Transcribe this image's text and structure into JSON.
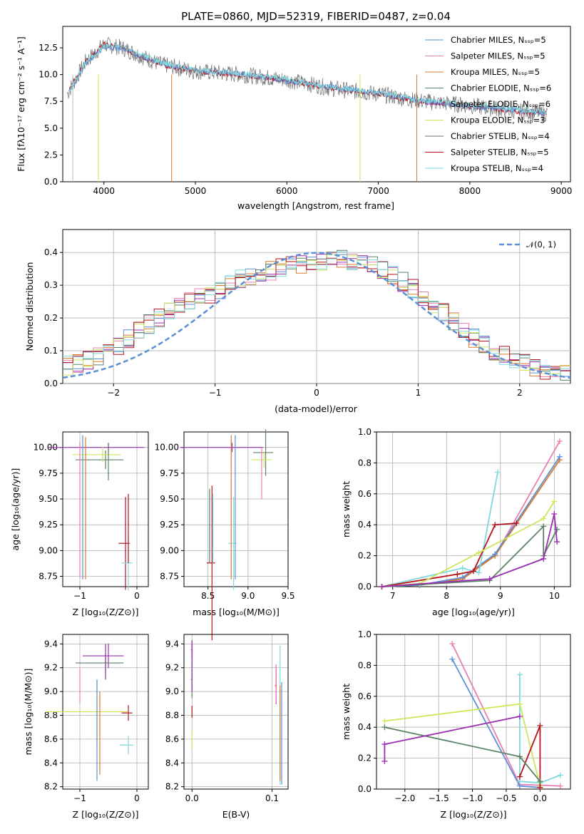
{
  "colors": [
    "#5b8fd6",
    "#e77fb4",
    "#dd7a2a",
    "#5b8265",
    "#9a2fb0",
    "#cde65c",
    "#707070",
    "#b5121b",
    "#7fd9dc"
  ],
  "chart_data": [
    {
      "type": "line",
      "title": "PLATE=0860, MJD=52319, FIBERID=0487, z=0.04",
      "xlabel": "wavelength [Angstrom, rest frame]",
      "ylabel": "Flux [fλ10⁻¹⁷ erg cm⁻² s⁻¹ A⁻¹]",
      "xlim": [
        3550,
        9100
      ],
      "ylim": [
        0,
        14.5
      ],
      "xticks": [
        "4000",
        "5000",
        "6000",
        "7000",
        "8000",
        "9000"
      ],
      "yticks": [
        "0.0",
        "2.5",
        "5.0",
        "7.5",
        "10.0",
        "12.5"
      ],
      "legend": [
        "Chabrier MILES, Nₛₛₚ=5",
        "Salpeter MILES, Nₛₛₚ=5",
        "Kroupa MILES, Nₛₛₚ=5",
        "Chabrier ELODIE, Nₛₛₚ=6",
        "Salpeter ELODIE, Nₛₛₚ=6",
        "Kroupa ELODIE, Nₛₛₚ=3",
        "Chabrier STELIB, Nₛₛₚ=4",
        "Salpeter STELIB, Nₛₛₚ=5",
        "Kroupa STELIB, Nₛₛₚ=4"
      ],
      "series": [
        {
          "name": "Chabrier MILES, Nₛₛₚ=5",
          "x": [
            3600,
            3800,
            4000,
            4200,
            4600,
            5000,
            5500,
            6000,
            6500,
            7000,
            7400,
            8000,
            8500,
            8800
          ],
          "y": [
            8.2,
            11.2,
            12.8,
            12.5,
            11.0,
            10.3,
            10.0,
            9.5,
            8.7,
            8.2,
            7.6,
            7.1,
            6.6,
            6.4
          ]
        },
        {
          "name": "Kroupa STELIB, Nₛₛₚ=4",
          "x": [
            3600,
            3800,
            4000,
            4200,
            4600,
            5000,
            5500,
            6000,
            6500,
            7000,
            7400,
            8000,
            8500,
            8800
          ],
          "y": [
            8.0,
            11.0,
            12.6,
            12.4,
            11.1,
            10.4,
            10.1,
            9.4,
            8.8,
            8.3,
            7.6,
            7.0,
            6.7,
            6.4
          ]
        },
        {
          "name": "Salpeter STELIB, Nₛₛₚ=5",
          "x": [
            3600,
            3800,
            4000,
            4200,
            4600,
            5000,
            5500,
            6000,
            6500,
            7000,
            7400,
            8000,
            8500,
            8800
          ],
          "y": [
            8.1,
            11.1,
            12.7,
            12.6,
            11.2,
            10.4,
            10.1,
            9.6,
            8.8,
            8.3,
            7.7,
            7.2,
            6.8,
            6.5
          ]
        }
      ]
    },
    {
      "type": "line",
      "xlabel": "(data-model)/error",
      "ylabel": "Normed distribution",
      "xlim": [
        -2.5,
        2.5
      ],
      "ylim": [
        0,
        0.47
      ],
      "xticks": [
        "−2",
        "−1",
        "0",
        "1",
        "2"
      ],
      "yticks": [
        "0.0",
        "0.1",
        "0.2",
        "0.3",
        "0.4"
      ],
      "legend": [
        "𝒩(0, 1)"
      ],
      "series": [
        {
          "name": "histogram",
          "x": [
            -2.5,
            -2.25,
            -2,
            -1.75,
            -1.5,
            -1.25,
            -1,
            -0.75,
            -0.5,
            -0.25,
            0,
            0.25,
            0.5,
            0.75,
            1,
            1.25,
            1.5,
            1.75,
            2,
            2.25,
            2.5
          ],
          "y": [
            0.05,
            0.07,
            0.1,
            0.16,
            0.21,
            0.25,
            0.28,
            0.32,
            0.34,
            0.36,
            0.37,
            0.38,
            0.37,
            0.33,
            0.28,
            0.22,
            0.15,
            0.1,
            0.07,
            0.04,
            0.03
          ]
        }
      ]
    },
    {
      "type": "scatter",
      "xlabel": "Z [log₁₀(Z/Z⊙)]",
      "ylabel": "age  [log₁₀(age/yr)]",
      "xlim": [
        -1.3,
        0.2
      ],
      "ylim": [
        8.65,
        10.15
      ],
      "xticks": [
        "−1",
        "0"
      ],
      "yticks": [
        "8.75",
        "9.00",
        "9.25",
        "9.50",
        "9.75",
        "10.00"
      ],
      "points": [
        {
          "x": -0.5,
          "y": 10.0
        },
        {
          "x": -0.55,
          "y": 9.88
        },
        {
          "x": -0.2,
          "y": 9.07
        },
        {
          "x": -0.15,
          "y": 8.88
        },
        {
          "x": -0.6,
          "y": 9.93
        }
      ]
    },
    {
      "type": "scatter",
      "xlabel": "mass [log₁₀(M/M⊙)]",
      "xlim": [
        8.2,
        9.5
      ],
      "ylim": [
        8.65,
        10.15
      ],
      "xticks": [
        "8.5",
        "9.0",
        "9.5"
      ],
      "yticks": [
        "8.75",
        "9.00",
        "9.25",
        "9.50",
        "9.75",
        "10.00"
      ],
      "points": [
        {
          "x": 8.8,
          "y": 10.0
        },
        {
          "x": 9.22,
          "y": 9.95
        },
        {
          "x": 8.55,
          "y": 8.88
        },
        {
          "x": 8.82,
          "y": 9.07
        },
        {
          "x": 9.2,
          "y": 9.88
        }
      ]
    },
    {
      "type": "line",
      "xlabel": "age  [log₁₀(age/yr)]",
      "ylabel": "mass weight",
      "xlim": [
        6.7,
        10.3
      ],
      "ylim": [
        0,
        1.0
      ],
      "xticks": [
        "7",
        "8",
        "9",
        "10"
      ],
      "yticks": [
        "0.0",
        "0.2",
        "0.4",
        "0.6",
        "0.8",
        "1.0"
      ],
      "series": [
        {
          "name": "Salpeter MILES",
          "x": [
            6.8,
            7.5,
            8.3,
            8.9,
            10.1
          ],
          "y": [
            0.0,
            0.01,
            0.05,
            0.2,
            0.94
          ]
        },
        {
          "name": "Kroupa MILES",
          "x": [
            6.8,
            7.5,
            8.3,
            8.9,
            10.1
          ],
          "y": [
            0.0,
            0.01,
            0.05,
            0.2,
            0.82
          ]
        },
        {
          "name": "Chabrier MILES",
          "x": [
            6.8,
            7.5,
            8.3,
            8.9,
            10.1
          ],
          "y": [
            0.0,
            0.01,
            0.06,
            0.21,
            0.84
          ]
        },
        {
          "name": "Kroupa STELIB",
          "x": [
            6.8,
            8.3,
            8.6,
            8.95
          ],
          "y": [
            0.0,
            0.12,
            0.09,
            0.74
          ]
        },
        {
          "name": "Salpeter STELIB",
          "x": [
            6.8,
            8.2,
            8.5,
            8.9,
            9.3
          ],
          "y": [
            0.0,
            0.08,
            0.1,
            0.4,
            0.41
          ]
        },
        {
          "name": "Kroupa ELODIE",
          "x": [
            6.8,
            7.5,
            8.6,
            9.8,
            10.0
          ],
          "y": [
            0.0,
            0.02,
            0.22,
            0.44,
            0.55
          ]
        },
        {
          "name": "Chabrier ELODIE",
          "x": [
            6.8,
            8.8,
            9.8,
            9.8,
            10.05
          ],
          "y": [
            0.0,
            0.04,
            0.39,
            0.2,
            0.37
          ]
        },
        {
          "name": "Salpeter ELODIE",
          "x": [
            6.8,
            8.8,
            9.8,
            10.0,
            10.05
          ],
          "y": [
            0.0,
            0.05,
            0.18,
            0.47,
            0.29
          ]
        }
      ]
    },
    {
      "type": "scatter",
      "xlabel": "Z [log₁₀(Z/Z⊙)]",
      "ylabel": "mass [log₁₀(M/M⊙)]",
      "xlim": [
        -1.3,
        0.2
      ],
      "ylim": [
        8.18,
        9.48
      ],
      "xticks": [
        "−1",
        "0"
      ],
      "yticks": [
        "8.2",
        "8.4",
        "8.6",
        "8.8",
        "9.0",
        "9.2",
        "9.4"
      ],
      "points": [
        {
          "x": -0.5,
          "y": 9.3
        },
        {
          "x": -0.55,
          "y": 9.24
        },
        {
          "x": -0.15,
          "y": 8.82
        },
        {
          "x": -0.15,
          "y": 8.55
        },
        {
          "x": -0.7,
          "y": 8.83
        }
      ]
    },
    {
      "type": "scatter",
      "xlabel": "E(B-V)",
      "xlim": [
        -0.01,
        0.12
      ],
      "ylim": [
        8.18,
        9.48
      ],
      "xticks": [
        "0.0",
        "0.1"
      ],
      "yticks": [
        "8.2",
        "8.4",
        "8.6",
        "8.8",
        "9.0",
        "9.2",
        "9.4"
      ],
      "points": [
        {
          "x": 0.0,
          "y": 9.35
        },
        {
          "x": 0.0,
          "y": 9.1
        },
        {
          "x": 0.105,
          "y": 9.05
        },
        {
          "x": 0.11,
          "y": 8.8
        },
        {
          "x": 0.0,
          "y": 8.6
        }
      ]
    },
    {
      "type": "line",
      "xlabel": "Z [log₁₀(Z/Z⊙)]",
      "ylabel": "mass weight",
      "xlim": [
        -2.42,
        0.45
      ],
      "ylim": [
        0,
        1.0
      ],
      "xticks": [
        "−2.0",
        "−1.5",
        "−1.0",
        "−0.5",
        "0.0"
      ],
      "yticks": [
        "0.0",
        "0.2",
        "0.4",
        "0.6",
        "0.8",
        "1.0"
      ],
      "series": [
        {
          "name": "Salpeter MILES",
          "x": [
            -1.3,
            -0.3,
            0.3
          ],
          "y": [
            0.94,
            0.03,
            0.02
          ]
        },
        {
          "name": "Chabrier MILES",
          "x": [
            -1.3,
            -0.3,
            0.0
          ],
          "y": [
            0.84,
            0.02,
            0.01
          ]
        },
        {
          "name": "Kroupa STELIB",
          "x": [
            -0.3,
            -0.3,
            0.0,
            0.3
          ],
          "y": [
            0.74,
            0.05,
            0.04,
            0.09
          ]
        },
        {
          "name": "Kroupa ELODIE",
          "x": [
            -2.3,
            -0.3,
            0.0
          ],
          "y": [
            0.44,
            0.55,
            0.02
          ]
        },
        {
          "name": "Salpeter STELIB",
          "x": [
            -0.3,
            0.0,
            0.0
          ],
          "y": [
            0.08,
            0.41,
            0.01
          ]
        },
        {
          "name": "Chabrier ELODIE",
          "x": [
            -2.3,
            -0.3,
            0.0
          ],
          "y": [
            0.4,
            0.21,
            0.05
          ]
        },
        {
          "name": "Salpeter ELODIE",
          "x": [
            -2.3,
            -2.3,
            -0.3
          ],
          "y": [
            0.18,
            0.29,
            0.47
          ]
        }
      ]
    }
  ]
}
